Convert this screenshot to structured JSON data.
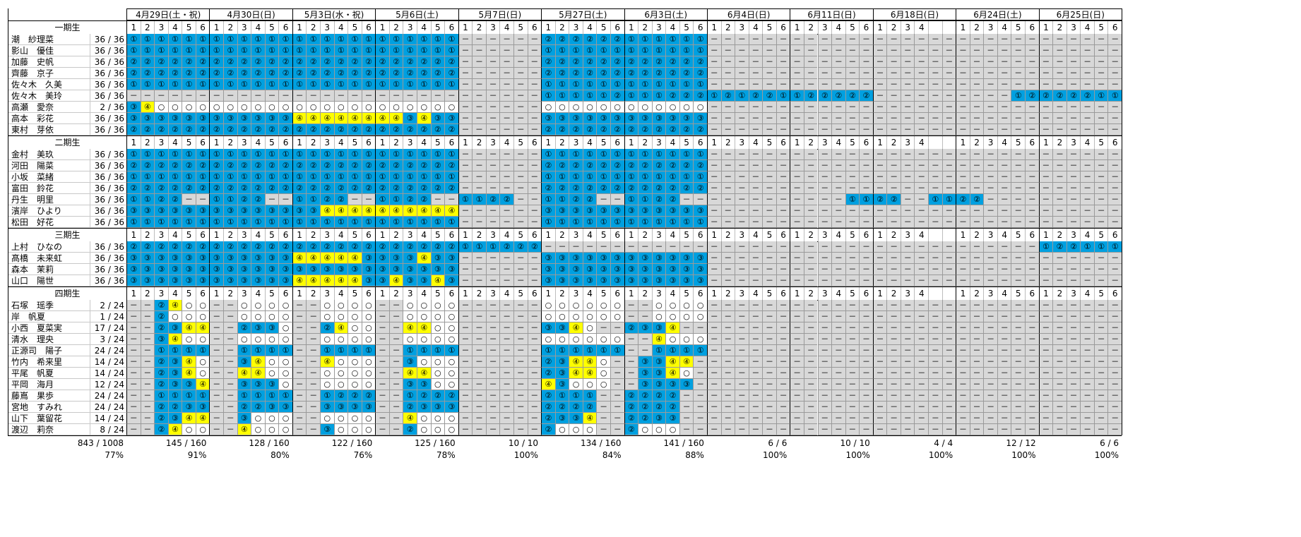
{
  "dates": [
    "4月29日(土・祝)",
    "4月30日(日)",
    "5月3日(水・祝)",
    "5月6日(土)",
    "5月7日(日)",
    "5月27日(土)",
    "6月3日(土)",
    "6月4日(日)",
    "6月11日(日)",
    "6月18日(日)",
    "6月24日(土)",
    "6月25日(日)"
  ],
  "slots": [
    6,
    6,
    6,
    6,
    6,
    6,
    6,
    6,
    6,
    4,
    6,
    6
  ],
  "generations": [
    {
      "label": "一期生",
      "members": [
        {
          "name": "潮　紗理菜",
          "count": "36 / 36",
          "cells": "111111111111111111111111------222222111111------------------------------------"
        },
        {
          "name": "影山　優佳",
          "count": "36 / 36",
          "cells": "111111111111111111111111------111111111111------------------------------------"
        },
        {
          "name": "加藤　史帆",
          "count": "36 / 36",
          "cells": "222222222222222222222222------222222222222------------------------------------"
        },
        {
          "name": "齊藤　京子",
          "count": "36 / 36",
          "cells": "222222222222222222222222------222222222222------------------------------------"
        },
        {
          "name": "佐々木　久美",
          "count": "36 / 36",
          "cells": "111111111111111111111111------111111111111------------------------------------"
        },
        {
          "name": "佐々木　美玲",
          "count": "36 / 36",
          "cells": "------------------------------111112111222121221122222----------122222111111"
        },
        {
          "name": "高瀬　愛奈",
          "count": "2 / 36",
          "cells": "34oooooooooooooooooooooo------oooooooooooo------------------------------------"
        },
        {
          "name": "高本　彩花",
          "count": "36 / 36",
          "cells": "333333333333444444443433------333333333333------------------------------------"
        },
        {
          "name": "東村　芽依",
          "count": "36 / 36",
          "cells": "222222222222222222222222------222222222222------------------------------------"
        }
      ]
    },
    {
      "label": "二期生",
      "members": [
        {
          "name": "金村　美玖",
          "count": "36 / 36",
          "cells": "111111111111111111111111------111111111111------------------------------------"
        },
        {
          "name": "河田　陽菜",
          "count": "36 / 36",
          "cells": "222222222222222222222222------222222222222------------------------------------"
        },
        {
          "name": "小坂　菜緒",
          "count": "36 / 36",
          "cells": "111111111111111111111111------111111111111------------------------------------"
        },
        {
          "name": "富田　鈴花",
          "count": "36 / 36",
          "cells": "222222222222222222222222------222222222222------------------------------------"
        },
        {
          "name": "丹生　明里",
          "count": "36 / 36",
          "cells": "1122--1122--1122--1122--1122--1122--1122------------1122--1122------------"
        },
        {
          "name": "濱岸　ひより",
          "count": "36 / 36",
          "cells": "333333333333334444444444------333333333333------------------------------------"
        },
        {
          "name": "松田　好花",
          "count": "36 / 36",
          "cells": "111111111111111111111111------111111111111------------------------------------"
        }
      ]
    },
    {
      "label": "三期生",
      "members": [
        {
          "name": "上村　ひなの",
          "count": "36 / 36",
          "cells": "222222222222222222222222111222------------------------------------122111------"
        },
        {
          "name": "髙橋　未来虹",
          "count": "36 / 36",
          "cells": "333333333333444443333433------333333333333------------------------------------"
        },
        {
          "name": "森本　茉莉",
          "count": "36 / 36",
          "cells": "333333333333333333333333------333333333333------------------------------------"
        },
        {
          "name": "山口　陽世",
          "count": "36 / 36",
          "cells": "333333333333444443343343------333333333333------------------------------------"
        }
      ]
    },
    {
      "label": "四期生",
      "members": [
        {
          "name": "石塚　瑶季",
          "count": "2 / 24",
          "cells": "--24oo--oooo--oooo--oooo------oooooo--oooo------------------------------------"
        },
        {
          "name": "岸　帆夏",
          "count": "1 / 24",
          "cells": "--2ooo--oooo--oooo--oooo------oooooo--oooo------------------------------------"
        },
        {
          "name": "小西　夏菜実",
          "count": "17 / 24",
          "cells": "--2344--233o--24oo--44oo------334o--2334------------------------------------"
        },
        {
          "name": "清水　理央",
          "count": "3 / 24",
          "cells": "--34oo--oooo--oooo--oooo------oooooo--4ooo------------------------------------"
        },
        {
          "name": "正源司　陽子",
          "count": "24 / 24",
          "cells": "--1111--1111--1111--1111------111111--1111------------------------------------"
        },
        {
          "name": "竹内　希来里",
          "count": "14 / 24",
          "cells": "--234o--34oo--4ooo--3ooo------2344o--3344------------------------------------"
        },
        {
          "name": "平尾　帆夏",
          "count": "14 / 24",
          "cells": "--234o--44oo--oooo--44oo------2344o--334o------------------------------------"
        },
        {
          "name": "平岡　海月",
          "count": "12 / 24",
          "cells": "--2334--333o--oooo--33oo------43ooo--3333------------------------------------"
        },
        {
          "name": "藤嶌　果歩",
          "count": "24 / 24",
          "cells": "--1111--1111--1222--1222------2111--2222------------------------------------"
        },
        {
          "name": "宮地　すみれ",
          "count": "24 / 24",
          "cells": "--2233--2233--3333--2333------2222--2222------------------------------------"
        },
        {
          "name": "山下　葉留花",
          "count": "14 / 24",
          "cells": "--2344--3ooo--oooo--4ooo------2334--2233------------------------------------"
        },
        {
          "name": "渡辺　莉奈",
          "count": "8 / 24",
          "cells": "--24oo--4ooo--3ooo--2ooo------2ooo--2ooo------------------------------------"
        }
      ]
    }
  ],
  "glyphs": {
    "1": "①",
    "2": "②",
    "3": "③",
    "4": "④",
    "o": "○",
    "-": "－"
  },
  "totals": {
    "overall": {
      "count": "843 / 1008",
      "pct": "77%"
    },
    "per_date": [
      {
        "count": "145 / 160",
        "pct": "91%"
      },
      {
        "count": "128 / 160",
        "pct": "80%"
      },
      {
        "count": "122 / 160",
        "pct": "76%"
      },
      {
        "count": "125 / 160",
        "pct": "78%"
      },
      {
        "count": "10 / 10",
        "pct": "100%"
      },
      {
        "count": "134 / 160",
        "pct": "84%"
      },
      {
        "count": "141 / 160",
        "pct": "88%"
      },
      {
        "count": "6 / 6",
        "pct": "100%"
      },
      {
        "count": "10 / 10",
        "pct": "100%"
      },
      {
        "count": "4 / 4",
        "pct": "100%"
      },
      {
        "count": "12 / 12",
        "pct": "100%"
      },
      {
        "count": "6 / 6",
        "pct": "100%"
      }
    ]
  },
  "colors": {
    "blue": "#00a0e0",
    "yellow": "#ffff00",
    "gray": "#d8d8d8",
    "white": "#ffffff"
  }
}
